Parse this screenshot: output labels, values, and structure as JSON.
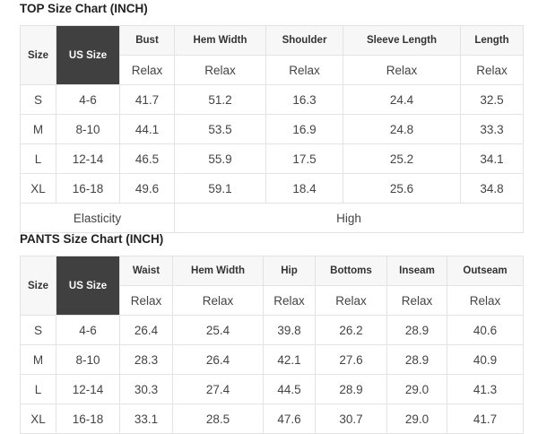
{
  "top": {
    "title": "TOP Size Chart (INCH)",
    "size_label": "Size",
    "us_size_label": "US Size",
    "columns": [
      "Bust",
      "Hem Width",
      "Shoulder",
      "Sleeve Length",
      "Length"
    ],
    "fit": [
      "Relax",
      "Relax",
      "Relax",
      "Relax",
      "Relax"
    ],
    "rows": [
      {
        "size": "S",
        "us": "4-6",
        "values": [
          "41.7",
          "51.2",
          "16.3",
          "24.4",
          "32.5"
        ]
      },
      {
        "size": "M",
        "us": "8-10",
        "values": [
          "44.1",
          "53.5",
          "16.9",
          "24.8",
          "33.3"
        ]
      },
      {
        "size": "L",
        "us": "12-14",
        "values": [
          "46.5",
          "55.9",
          "17.5",
          "25.2",
          "34.1"
        ]
      },
      {
        "size": "XL",
        "us": "16-18",
        "values": [
          "49.6",
          "59.1",
          "18.4",
          "25.6",
          "34.8"
        ]
      }
    ],
    "elasticity_label": "Elasticity",
    "elasticity_value": "High"
  },
  "pants": {
    "title": "PANTS Size Chart (INCH)",
    "size_label": "Size",
    "us_size_label": "US Size",
    "columns": [
      "Waist",
      "Hem Width",
      "Hip",
      "Bottoms",
      "Inseam",
      "Outseam"
    ],
    "fit": [
      "Relax",
      "Relax",
      "Relax",
      "Relax",
      "Relax",
      "Relax"
    ],
    "rows": [
      {
        "size": "S",
        "us": "4-6",
        "values": [
          "26.4",
          "25.4",
          "39.8",
          "26.2",
          "28.9",
          "40.6"
        ]
      },
      {
        "size": "M",
        "us": "8-10",
        "values": [
          "28.3",
          "26.4",
          "42.1",
          "27.6",
          "28.9",
          "40.9"
        ]
      },
      {
        "size": "L",
        "us": "12-14",
        "values": [
          "30.3",
          "27.4",
          "44.5",
          "28.9",
          "29.0",
          "41.3"
        ]
      },
      {
        "size": "XL",
        "us": "16-18",
        "values": [
          "33.1",
          "28.5",
          "47.6",
          "30.7",
          "29.0",
          "41.7"
        ]
      }
    ]
  },
  "colors": {
    "us_size_header": "#404040",
    "header_bg": "#f7f7f7",
    "border": "#e3e3e3"
  }
}
